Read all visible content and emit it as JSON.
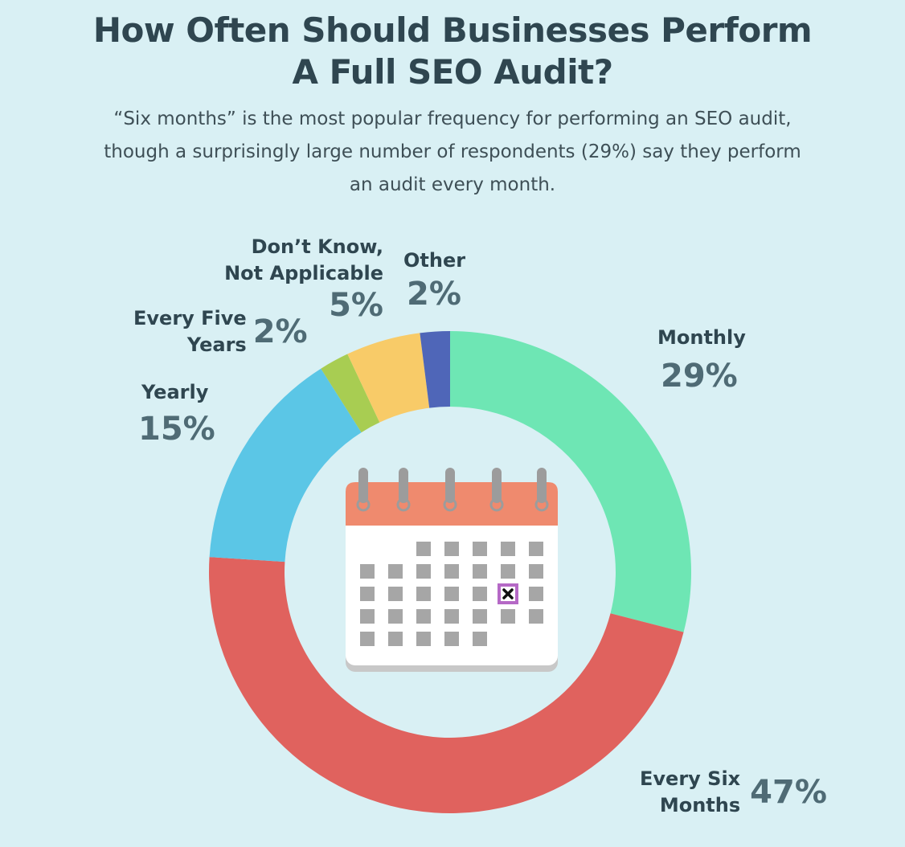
{
  "header": {
    "title_line1": "How Often Should Businesses Perform",
    "title_line2": "A Full SEO Audit?",
    "subtitle_line1": "“Six months” is the most popular frequency for performing an SEO audit,",
    "subtitle_line2": "though a surprisingly large number of respondents (29%) say they perform",
    "subtitle_line3": "an audit every month."
  },
  "chart_data": {
    "type": "pie",
    "title": "How Often Should Businesses Perform A Full SEO Audit?",
    "slices": [
      {
        "label": "Monthly",
        "label_lines": [
          "Monthly"
        ],
        "value": 29,
        "display": "29%",
        "color": "#6ee6b4"
      },
      {
        "label": "Every Six Months",
        "label_lines": [
          "Every Six",
          "Months"
        ],
        "value": 47,
        "display": "47%",
        "color": "#e0625e"
      },
      {
        "label": "Yearly",
        "label_lines": [
          "Yearly"
        ],
        "value": 15,
        "display": "15%",
        "color": "#5bc6e6"
      },
      {
        "label": "Every Five Years",
        "label_lines": [
          "Every Five",
          "Years"
        ],
        "value": 2,
        "display": "2%",
        "color": "#a8cd52"
      },
      {
        "label": "Don't Know, Not Applicable",
        "label_lines": [
          "Don’t Know,",
          "Not Applicable"
        ],
        "value": 5,
        "display": "5%",
        "color": "#f8cb68"
      },
      {
        "label": "Other",
        "label_lines": [
          "Other"
        ],
        "value": 2,
        "display": "2%",
        "color": "#4f66b8"
      }
    ]
  },
  "icons": {
    "center": "calendar-icon",
    "marked_day": "x-mark-icon"
  },
  "colors": {
    "background": "#d9f0f4",
    "title": "#2f4650",
    "percent": "#4f6b75",
    "calendar_header": "#ef8a6e",
    "calendar_day": "#a6a6a6",
    "calendar_mark": "#b569c6"
  }
}
